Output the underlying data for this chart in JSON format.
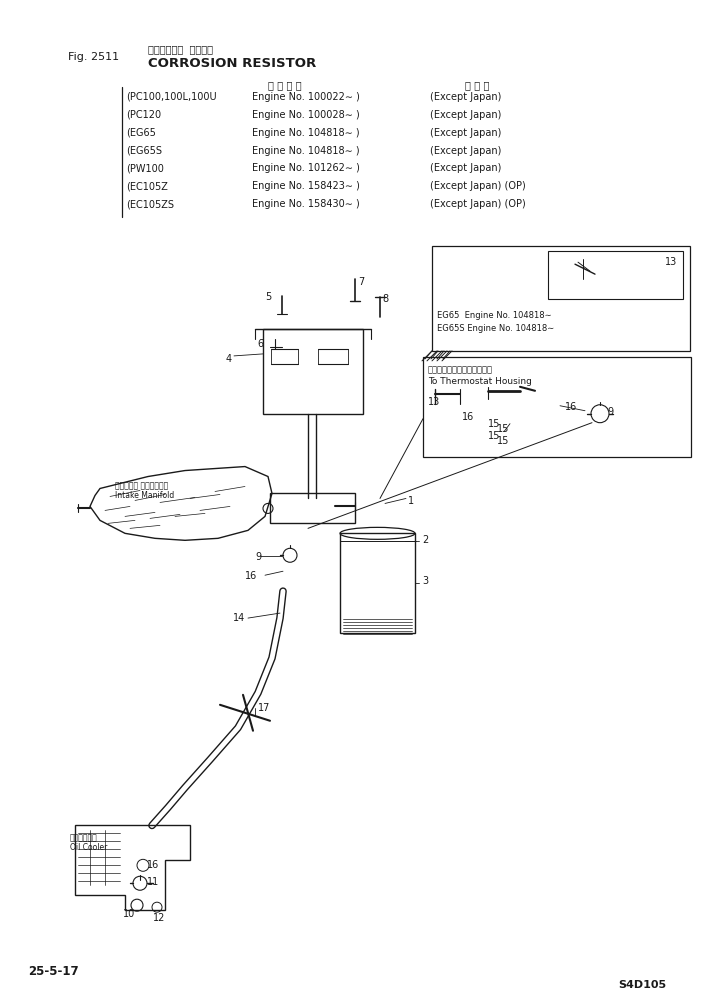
{
  "fig_number": "Fig. 2511",
  "title_japanese": "コロージョン  レジスタ",
  "title_english": "CORROSION RESISTOR",
  "models": [
    "(PC100,100L,100U",
    "(PC120",
    "(EG65",
    "(EG65S",
    "(PW100",
    "(EC105Z",
    "(EC105ZS"
  ],
  "engine_label_japanese": "運 用 番 号",
  "engine_numbers": [
    "Engine No. 100022∼ )",
    "Engine No. 100028∼ )",
    "Engine No. 104818∼ )",
    "Engine No. 104818∼ )",
    "Engine No. 101262∼ )",
    "Engine No. 158423∼ )",
    "Engine No. 158430∼ )"
  ],
  "location_label_japanese": "海 外 向",
  "location_notes": [
    "(Except Japan)",
    "(Except Japan)",
    "(Except Japan)",
    "(Except Japan)",
    "(Except Japan)",
    "(Except Japan) (OP)",
    "(Except Japan) (OP)"
  ],
  "page_ref": "25-5-17",
  "model_ref": "S4D105",
  "bg_color": "#ffffff",
  "line_color": "#1a1a1a",
  "text_color": "#1a1a1a"
}
